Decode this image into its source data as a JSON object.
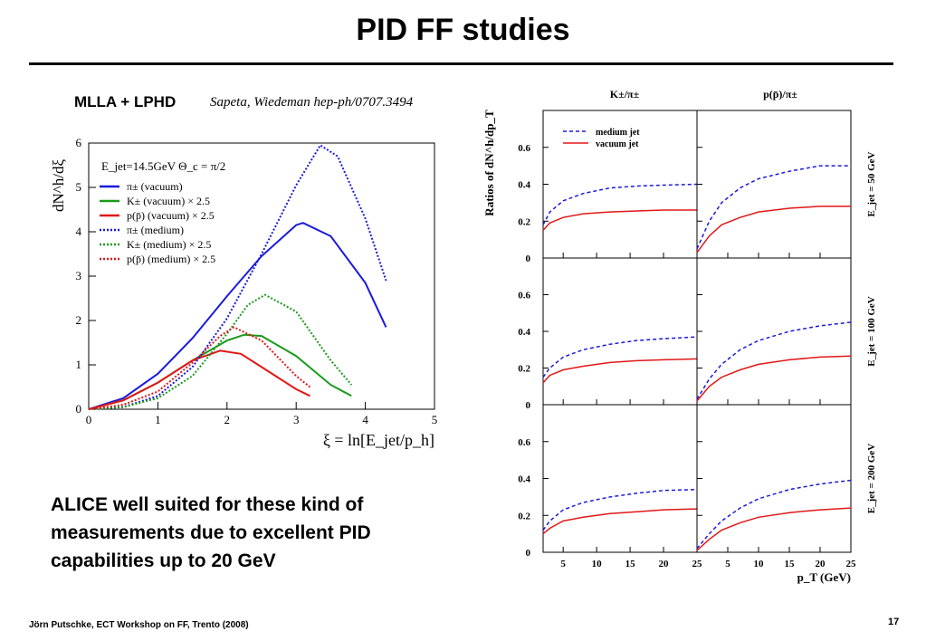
{
  "slide": {
    "title": "PID FF studies",
    "subtitle": "MLLA + LPHD",
    "reference": "Sapeta, Wiedeman hep-ph/0707.3494",
    "body_text": "ALICE well suited for these kind of measurements due to excellent PID capabilities up to 20 GeV",
    "footer": "Jörn Putschke, ECT Workshop on FF, Trento (2008)",
    "page_number": "17"
  },
  "chart_data": [
    {
      "type": "line",
      "ylabel": "dN^h/dξ",
      "xlabel": "ξ = ln[E_jet/p_h]",
      "annotation": "E_jet=14.5GeV   Θ_c = π/2",
      "xlim": [
        0,
        5
      ],
      "ylim": [
        0,
        6
      ],
      "xticks": [
        "0",
        "1",
        "2",
        "3",
        "4",
        "5"
      ],
      "yticks": [
        "0",
        "1",
        "2",
        "3",
        "4",
        "5",
        "6"
      ],
      "legend_position": "top-left",
      "series": [
        {
          "name": "π± (vacuum)",
          "color": "#1a1adc",
          "style": "solid",
          "x": [
            0,
            0.5,
            1,
            1.5,
            2,
            2.5,
            3,
            3.1,
            3.5,
            4,
            4.3
          ],
          "y": [
            0,
            0.25,
            0.8,
            1.6,
            2.55,
            3.45,
            4.15,
            4.2,
            3.9,
            2.85,
            1.85
          ]
        },
        {
          "name": "K± (vacuum) × 2.5",
          "color": "#1a9a1a",
          "style": "solid",
          "x": [
            0,
            0.5,
            1,
            1.5,
            2,
            2.25,
            2.5,
            3,
            3.5,
            3.8
          ],
          "y": [
            0,
            0.2,
            0.6,
            1.1,
            1.55,
            1.68,
            1.65,
            1.2,
            0.55,
            0.3
          ]
        },
        {
          "name": "p(p̄) (vacuum) × 2.5",
          "color": "#e01818",
          "style": "solid",
          "x": [
            0,
            0.5,
            1,
            1.5,
            1.9,
            2.2,
            2.5,
            3,
            3.2
          ],
          "y": [
            0,
            0.2,
            0.6,
            1.1,
            1.32,
            1.25,
            0.95,
            0.45,
            0.3
          ]
        },
        {
          "name": "π± (medium)",
          "color": "#1a1adc",
          "style": "dotted",
          "x": [
            0,
            0.5,
            1,
            1.5,
            2,
            2.5,
            3,
            3.35,
            3.6,
            4,
            4.3
          ],
          "y": [
            0,
            0.05,
            0.3,
            0.95,
            2.05,
            3.5,
            5.05,
            5.95,
            5.7,
            4.3,
            2.9
          ]
        },
        {
          "name": "K± (medium) × 2.5",
          "color": "#1a9a1a",
          "style": "dotted",
          "x": [
            0,
            0.5,
            1,
            1.5,
            2,
            2.3,
            2.55,
            3,
            3.5,
            3.8
          ],
          "y": [
            0,
            0.05,
            0.25,
            0.75,
            1.7,
            2.35,
            2.58,
            2.2,
            1.1,
            0.55
          ]
        },
        {
          "name": "p(p̄) (medium) × 2.5",
          "color": "#e01818",
          "style": "dotted",
          "x": [
            0,
            0.5,
            1,
            1.5,
            1.9,
            2.1,
            2.5,
            3,
            3.2
          ],
          "y": [
            0,
            0.1,
            0.4,
            1.05,
            1.65,
            1.85,
            1.55,
            0.75,
            0.5
          ]
        }
      ]
    },
    {
      "type": "line",
      "ylabel": "Ratios of dN^h/dp_T",
      "xlabel": "p_T (GeV)",
      "column_titles": [
        "K±/π±",
        "p(p̄)/π±"
      ],
      "row_labels": [
        "E_jet = 50 GeV",
        "E_jet = 100 GeV",
        "E_jet = 200 GeV"
      ],
      "xlim": [
        2,
        25
      ],
      "ylim": [
        0,
        0.8
      ],
      "xticks": [
        "5",
        "10",
        "15",
        "20",
        "25"
      ],
      "yticks": [
        "0",
        "0.2",
        "0.4",
        "0.6"
      ],
      "legend": [
        {
          "name": "medium jet",
          "color": "#1a1adc",
          "style": "dashed"
        },
        {
          "name": "vacuum jet",
          "color": "#e01818",
          "style": "solid"
        }
      ],
      "panels": [
        {
          "row": 0,
          "col": 0,
          "x": [
            2,
            3,
            5,
            8,
            12,
            16,
            20,
            25
          ],
          "medium": [
            0.18,
            0.25,
            0.31,
            0.35,
            0.38,
            0.39,
            0.395,
            0.4
          ],
          "vacuum": [
            0.15,
            0.19,
            0.22,
            0.24,
            0.25,
            0.255,
            0.26,
            0.26
          ]
        },
        {
          "row": 0,
          "col": 1,
          "x": [
            0,
            2,
            4,
            7,
            10,
            15,
            20,
            25
          ],
          "medium": [
            0.05,
            0.2,
            0.3,
            0.38,
            0.43,
            0.47,
            0.5,
            0.5
          ],
          "vacuum": [
            0.03,
            0.12,
            0.18,
            0.22,
            0.25,
            0.27,
            0.28,
            0.28
          ]
        },
        {
          "row": 1,
          "col": 0,
          "x": [
            2,
            3,
            5,
            8,
            12,
            16,
            20,
            25
          ],
          "medium": [
            0.15,
            0.2,
            0.26,
            0.3,
            0.33,
            0.35,
            0.36,
            0.37
          ],
          "vacuum": [
            0.12,
            0.16,
            0.19,
            0.21,
            0.23,
            0.24,
            0.245,
            0.25
          ]
        },
        {
          "row": 1,
          "col": 1,
          "x": [
            0,
            2,
            4,
            7,
            10,
            15,
            20,
            25
          ],
          "medium": [
            0.03,
            0.14,
            0.22,
            0.3,
            0.35,
            0.4,
            0.43,
            0.45
          ],
          "vacuum": [
            0.02,
            0.1,
            0.15,
            0.19,
            0.22,
            0.245,
            0.26,
            0.265
          ]
        },
        {
          "row": 2,
          "col": 0,
          "x": [
            2,
            3,
            5,
            8,
            12,
            16,
            20,
            25
          ],
          "medium": [
            0.12,
            0.17,
            0.23,
            0.27,
            0.3,
            0.32,
            0.335,
            0.34
          ],
          "vacuum": [
            0.1,
            0.13,
            0.17,
            0.19,
            0.21,
            0.22,
            0.23,
            0.235
          ]
        },
        {
          "row": 2,
          "col": 1,
          "x": [
            0,
            2,
            4,
            7,
            10,
            15,
            20,
            25
          ],
          "medium": [
            0.02,
            0.1,
            0.17,
            0.24,
            0.29,
            0.34,
            0.37,
            0.39
          ],
          "vacuum": [
            0.01,
            0.07,
            0.12,
            0.16,
            0.19,
            0.215,
            0.23,
            0.24
          ]
        }
      ]
    }
  ]
}
